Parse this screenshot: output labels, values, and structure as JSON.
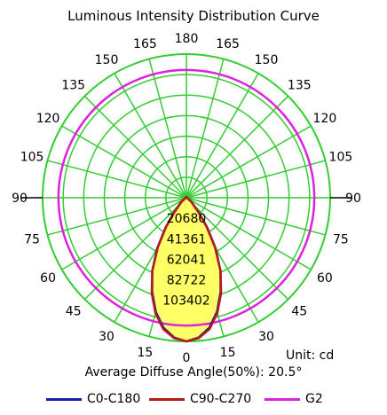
{
  "chart_data": {
    "type": "polar",
    "title": "Luminous Intensity Distribution Curve",
    "unit_label": "Unit: cd",
    "average_angle_label": "Average Diffuse Angle(50%): 20.5°",
    "angle_labels": {
      "left": [
        "180",
        "165",
        "150",
        "135",
        "120",
        "105",
        "90",
        "75",
        "60",
        "45",
        "30",
        "15",
        "0"
      ],
      "right": [
        "165",
        "150",
        "135",
        "120",
        "105",
        "90",
        "75",
        "60",
        "45",
        "30",
        "15"
      ]
    },
    "radial_ticks": [
      "20680",
      "41361",
      "62041",
      "82722",
      "103402"
    ],
    "rmax": 103402,
    "grid": true,
    "colors": {
      "grid": "#33cc33",
      "fill": "#ffff66",
      "C0-C180": "#1a1aa8",
      "C90-C270": "#b81a1a",
      "G2": "#dd22dd"
    },
    "legend": [
      "C0-C180",
      "C90-C270",
      "G2"
    ],
    "series": [
      {
        "name": "C0-C180",
        "theta": [
          0,
          5,
          10,
          15,
          20,
          25,
          30,
          35,
          40,
          50,
          60,
          90,
          120,
          150,
          180
        ],
        "values": [
          103402,
          101000,
          95000,
          85000,
          72000,
          58000,
          42000,
          26000,
          14000,
          5000,
          1500,
          500,
          500,
          500,
          500
        ]
      },
      {
        "name": "C90-C270",
        "theta": [
          0,
          5,
          10,
          15,
          20,
          25,
          30,
          35,
          40,
          50,
          60,
          90,
          120,
          150,
          180
        ],
        "values": [
          103402,
          101500,
          96000,
          86000,
          73000,
          58000,
          41000,
          25000,
          13000,
          4500,
          1200,
          500,
          500,
          500,
          500
        ]
      },
      {
        "name": "G2",
        "theta": [
          0,
          30,
          60,
          90,
          120,
          150,
          180
        ],
        "values": [
          92000,
          92000,
          92000,
          92000,
          92000,
          92000,
          92000
        ]
      }
    ]
  }
}
